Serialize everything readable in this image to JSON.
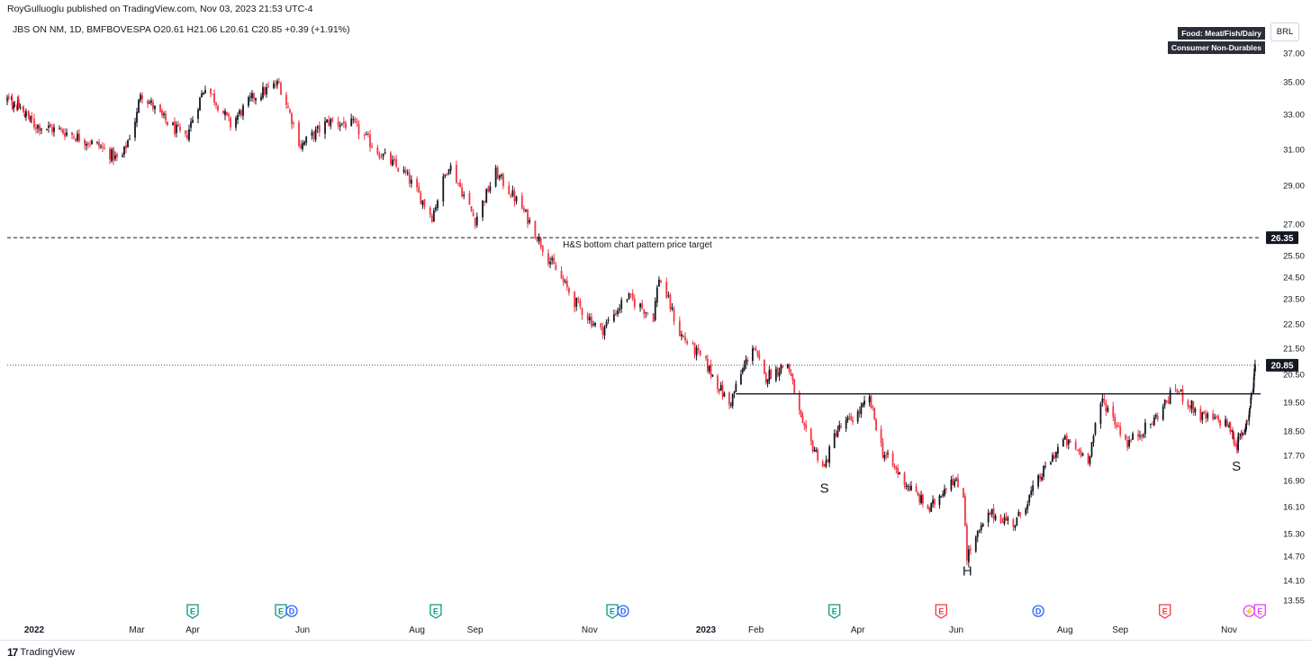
{
  "header": {
    "publisher_line": "RoyGulluoglu published on TradingView.com, Nov 03, 2023 21:53 UTC-4",
    "symbol_line": "JBS ON NM, 1D, BMFBOVESPA  O20.61  H21.06  L20.61  C20.85  +0.39 (+1.91%)"
  },
  "badges": {
    "sector": "Food: Meat/Fish/Dairy",
    "industry": "Consumer Non-Durables"
  },
  "currency": "BRL",
  "footer": {
    "brand": "TradingView",
    "logo_icon": "tradingview-logo-icon"
  },
  "colors": {
    "up": "#131722",
    "down": "#f23645",
    "grid": "#ffffff",
    "axis_text": "#131722"
  },
  "chart_data": {
    "type": "candlestick",
    "title": "",
    "ylim": [
      13.3,
      37.7
    ],
    "y_ticks": [
      "37.00",
      "35.00",
      "33.00",
      "31.00",
      "29.00",
      "27.00",
      "25.50",
      "24.50",
      "23.50",
      "22.50",
      "21.50",
      "20.50",
      "19.50",
      "18.50",
      "17.70",
      "16.90",
      "16.10",
      "15.30",
      "14.70",
      "14.10",
      "13.55"
    ],
    "x_ticks": [
      {
        "label": "2022",
        "date": "2022-01-03",
        "bold": true
      },
      {
        "label": "Mar",
        "date": "2022-03-01",
        "bold": false
      },
      {
        "label": "Apr",
        "date": "2022-04-01",
        "bold": false
      },
      {
        "label": "Jun",
        "date": "2022-06-01",
        "bold": false
      },
      {
        "label": "Aug",
        "date": "2022-08-01",
        "bold": false
      },
      {
        "label": "Sep",
        "date": "2022-09-01",
        "bold": false
      },
      {
        "label": "Nov",
        "date": "2022-11-01",
        "bold": false
      },
      {
        "label": "2023",
        "date": "2023-01-02",
        "bold": true
      },
      {
        "label": "Feb",
        "date": "2023-02-01",
        "bold": false
      },
      {
        "label": "Apr",
        "date": "2023-04-03",
        "bold": false
      },
      {
        "label": "Jun",
        "date": "2023-06-01",
        "bold": false
      },
      {
        "label": "Aug",
        "date": "2023-08-01",
        "bold": false
      },
      {
        "label": "Sep",
        "date": "2023-09-01",
        "bold": false
      },
      {
        "label": "Nov",
        "date": "2023-11-01",
        "bold": false
      }
    ],
    "price_path": [
      [
        "2021-12-01",
        33.9
      ],
      [
        "2021-12-15",
        33.5
      ],
      [
        "2022-01-03",
        32.4
      ],
      [
        "2022-01-20",
        32.0
      ],
      [
        "2022-02-08",
        31.2
      ],
      [
        "2022-02-20",
        30.3
      ],
      [
        "2022-03-01",
        33.0
      ],
      [
        "2022-03-03",
        34.4
      ],
      [
        "2022-03-15",
        32.8
      ],
      [
        "2022-03-28",
        31.6
      ],
      [
        "2022-04-08",
        34.8
      ],
      [
        "2022-04-22",
        32.4
      ],
      [
        "2022-05-05",
        34.1
      ],
      [
        "2022-05-19",
        34.9
      ],
      [
        "2022-05-31",
        31.2
      ],
      [
        "2022-06-15",
        32.6
      ],
      [
        "2022-06-28",
        32.4
      ],
      [
        "2022-07-12",
        30.8
      ],
      [
        "2022-07-26",
        29.6
      ],
      [
        "2022-08-09",
        27.4
      ],
      [
        "2022-08-18",
        30.2
      ],
      [
        "2022-09-01",
        27.2
      ],
      [
        "2022-09-12",
        29.7
      ],
      [
        "2022-09-26",
        27.8
      ],
      [
        "2022-10-10",
        25.4
      ],
      [
        "2022-10-24",
        23.4
      ],
      [
        "2022-11-07",
        22.2
      ],
      [
        "2022-11-21",
        23.6
      ],
      [
        "2022-12-05",
        22.8
      ],
      [
        "2022-12-08",
        24.5
      ],
      [
        "2022-12-19",
        22.1
      ],
      [
        "2023-01-02",
        20.9
      ],
      [
        "2023-01-16",
        19.4
      ],
      [
        "2023-01-30",
        21.6
      ],
      [
        "2023-02-06",
        20.4
      ],
      [
        "2023-02-20",
        20.9
      ],
      [
        "2023-03-01",
        18.6
      ],
      [
        "2023-03-14",
        17.3
      ],
      [
        "2023-03-21",
        18.5
      ],
      [
        "2023-04-03",
        19.1
      ],
      [
        "2023-04-10",
        19.6
      ],
      [
        "2023-04-18",
        17.8
      ],
      [
        "2023-05-02",
        16.8
      ],
      [
        "2023-05-16",
        16.0
      ],
      [
        "2023-05-29",
        17.0
      ],
      [
        "2023-06-05",
        16.5
      ],
      [
        "2023-06-07",
        14.7
      ],
      [
        "2023-06-20",
        15.9
      ],
      [
        "2023-07-04",
        15.6
      ],
      [
        "2023-07-18",
        17.0
      ],
      [
        "2023-07-31",
        18.2
      ],
      [
        "2023-08-14",
        17.6
      ],
      [
        "2023-08-22",
        19.6
      ],
      [
        "2023-09-05",
        18.1
      ],
      [
        "2023-09-19",
        18.8
      ],
      [
        "2023-10-02",
        20.0
      ],
      [
        "2023-10-16",
        19.0
      ],
      [
        "2023-10-30",
        18.8
      ],
      [
        "2023-11-13",
        18.0
      ],
      [
        "2023-11-27",
        18.6
      ],
      [
        "2023-12-04",
        19.1
      ],
      [
        "2023-12-11",
        20.2
      ],
      [
        "2023-12-14",
        20.85
      ]
    ],
    "last_candle": {
      "date": "2023-12-14",
      "open": 20.61,
      "high": 21.06,
      "low": 20.61,
      "close": 20.85
    },
    "last_price_label": "20.85",
    "price_target": {
      "value": 26.35,
      "label": "26.35",
      "annotation": "H&S bottom chart pattern price target"
    },
    "neckline": {
      "value": 19.8,
      "start": "2023-01-20",
      "end": "2023-12-23"
    },
    "pattern_labels": [
      {
        "text": "S",
        "date": "2023-03-14",
        "price": 16.75
      },
      {
        "text": "H",
        "date": "2023-06-07",
        "price": 14.4
      },
      {
        "text": "S",
        "date": "2023-11-13",
        "price": 17.45
      }
    ],
    "events": [
      {
        "date": "2022-04-01",
        "kinds": [
          "E"
        ],
        "color": "#089981"
      },
      {
        "date": "2022-05-23",
        "kinds": [
          "E",
          "D"
        ],
        "color": "#089981"
      },
      {
        "date": "2022-08-11",
        "kinds": [
          "E"
        ],
        "color": "#089981"
      },
      {
        "date": "2022-11-16",
        "kinds": [
          "E",
          "D"
        ],
        "color": "#089981"
      },
      {
        "date": "2023-03-20",
        "kinds": [
          "E"
        ],
        "color": "#089981"
      },
      {
        "date": "2023-05-23",
        "kinds": [
          "E"
        ],
        "color": "#f23645"
      },
      {
        "date": "2023-07-17",
        "kinds": [
          "D"
        ],
        "color": "#2962ff"
      },
      {
        "date": "2023-09-26",
        "kinds": [
          "E"
        ],
        "color": "#f23645"
      },
      {
        "date": "2023-12-13",
        "kinds": [
          "split",
          "E"
        ],
        "color": "#e040fb"
      }
    ]
  }
}
